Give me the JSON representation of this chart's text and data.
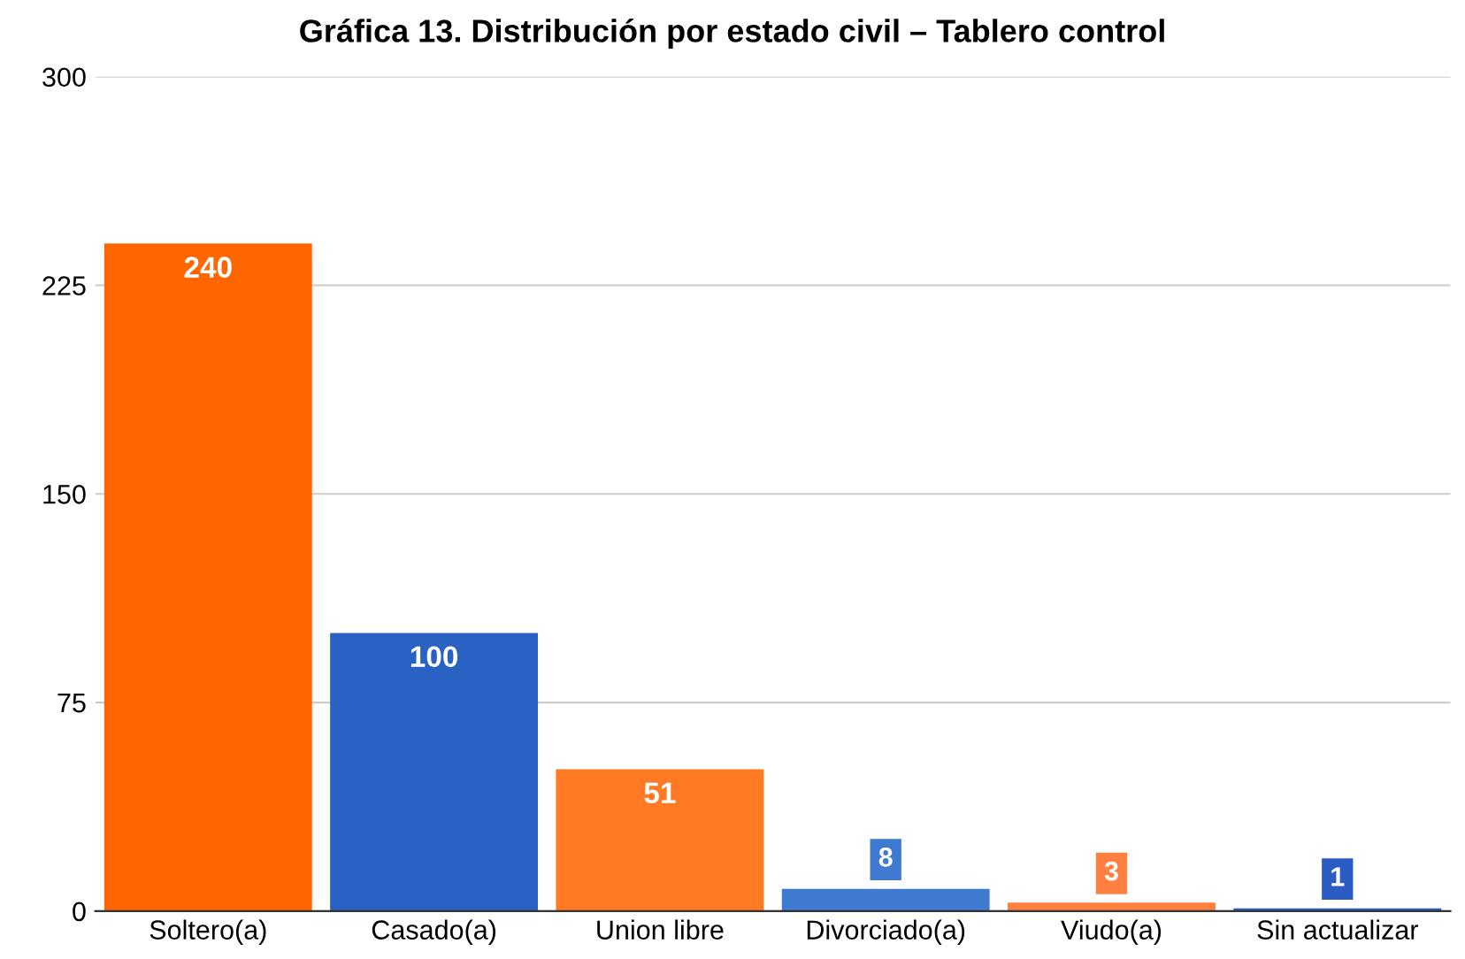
{
  "chart_data": {
    "type": "bar",
    "title": "Gráfica 13. Distribución por estado civil – Tablero control",
    "categories": [
      "Soltero(a)",
      "Casado(a)",
      "Union libre",
      "Divorciado(a)",
      "Viudo(a)",
      "Sin actualizar"
    ],
    "values": [
      240,
      100,
      51,
      8,
      3,
      1
    ],
    "colors": [
      "#ff6600",
      "#2a62c4",
      "#ff7a22",
      "#3d7ad0",
      "#ff7f3f",
      "#2a5cc4"
    ],
    "ylim": [
      0,
      300
    ],
    "yticks": [
      0,
      75,
      150,
      225,
      300
    ],
    "grid": "y",
    "data_labels": true,
    "legend": false
  }
}
